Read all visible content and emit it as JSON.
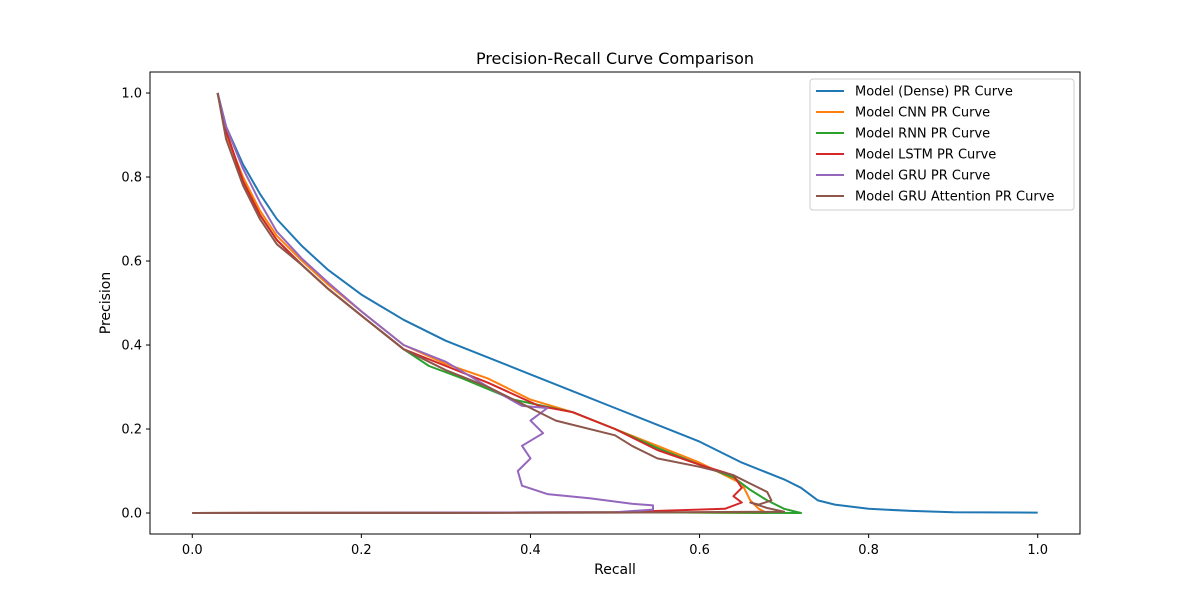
{
  "chart_data": {
    "type": "line",
    "title": "Precision-Recall Curve Comparison",
    "xlabel": "Recall",
    "ylabel": "Precision",
    "xlim": [
      -0.05,
      1.05
    ],
    "ylim": [
      -0.05,
      1.05
    ],
    "xticks": [
      "0.0",
      "0.2",
      "0.4",
      "0.6",
      "0.8",
      "1.0"
    ],
    "yticks": [
      "0.0",
      "0.2",
      "0.4",
      "0.6",
      "0.8",
      "1.0"
    ],
    "grid": false,
    "legend_position": "top-right",
    "series": [
      {
        "name": "Model (Dense) PR Curve",
        "color": "#1f77b4",
        "points": [
          [
            0.03,
            1.0
          ],
          [
            0.04,
            0.92
          ],
          [
            0.06,
            0.83
          ],
          [
            0.08,
            0.76
          ],
          [
            0.1,
            0.7
          ],
          [
            0.13,
            0.635
          ],
          [
            0.16,
            0.58
          ],
          [
            0.2,
            0.52
          ],
          [
            0.25,
            0.46
          ],
          [
            0.3,
            0.41
          ],
          [
            0.35,
            0.37
          ],
          [
            0.4,
            0.33
          ],
          [
            0.45,
            0.29
          ],
          [
            0.5,
            0.25
          ],
          [
            0.55,
            0.21
          ],
          [
            0.6,
            0.17
          ],
          [
            0.65,
            0.12
          ],
          [
            0.7,
            0.08
          ],
          [
            0.72,
            0.06
          ],
          [
            0.74,
            0.03
          ],
          [
            0.76,
            0.02
          ],
          [
            0.8,
            0.01
          ],
          [
            0.85,
            0.005
          ],
          [
            0.9,
            0.002
          ],
          [
            1.0,
            0.001
          ]
        ]
      },
      {
        "name": "Model CNN PR Curve",
        "color": "#ff7f0e",
        "points": [
          [
            0.03,
            1.0
          ],
          [
            0.04,
            0.9
          ],
          [
            0.06,
            0.8
          ],
          [
            0.08,
            0.72
          ],
          [
            0.1,
            0.66
          ],
          [
            0.13,
            0.6
          ],
          [
            0.16,
            0.545
          ],
          [
            0.2,
            0.48
          ],
          [
            0.25,
            0.4
          ],
          [
            0.3,
            0.355
          ],
          [
            0.35,
            0.32
          ],
          [
            0.4,
            0.27
          ],
          [
            0.45,
            0.24
          ],
          [
            0.5,
            0.2
          ],
          [
            0.55,
            0.16
          ],
          [
            0.6,
            0.12
          ],
          [
            0.63,
            0.09
          ],
          [
            0.65,
            0.07
          ],
          [
            0.66,
            0.03
          ],
          [
            0.67,
            0.01
          ],
          [
            0.68,
            0.0
          ],
          [
            0.5,
            0.002
          ],
          [
            0.3,
            0.001
          ],
          [
            0.0,
            0.0
          ]
        ]
      },
      {
        "name": "Model RNN PR Curve",
        "color": "#2ca02c",
        "points": [
          [
            0.03,
            1.0
          ],
          [
            0.04,
            0.91
          ],
          [
            0.06,
            0.79
          ],
          [
            0.08,
            0.71
          ],
          [
            0.1,
            0.65
          ],
          [
            0.13,
            0.59
          ],
          [
            0.16,
            0.535
          ],
          [
            0.2,
            0.47
          ],
          [
            0.25,
            0.39
          ],
          [
            0.28,
            0.35
          ],
          [
            0.32,
            0.32
          ],
          [
            0.38,
            0.27
          ],
          [
            0.45,
            0.24
          ],
          [
            0.5,
            0.2
          ],
          [
            0.55,
            0.155
          ],
          [
            0.6,
            0.115
          ],
          [
            0.64,
            0.085
          ],
          [
            0.66,
            0.055
          ],
          [
            0.68,
            0.03
          ],
          [
            0.7,
            0.01
          ],
          [
            0.72,
            0.0
          ],
          [
            0.5,
            0.002
          ],
          [
            0.3,
            0.001
          ],
          [
            0.0,
            0.0
          ]
        ]
      },
      {
        "name": "Model LSTM PR Curve",
        "color": "#d62728",
        "points": [
          [
            0.03,
            1.0
          ],
          [
            0.04,
            0.91
          ],
          [
            0.06,
            0.79
          ],
          [
            0.08,
            0.71
          ],
          [
            0.1,
            0.65
          ],
          [
            0.13,
            0.59
          ],
          [
            0.16,
            0.535
          ],
          [
            0.2,
            0.47
          ],
          [
            0.25,
            0.39
          ],
          [
            0.3,
            0.35
          ],
          [
            0.35,
            0.31
          ],
          [
            0.41,
            0.255
          ],
          [
            0.45,
            0.24
          ],
          [
            0.5,
            0.2
          ],
          [
            0.55,
            0.15
          ],
          [
            0.6,
            0.115
          ],
          [
            0.64,
            0.09
          ],
          [
            0.65,
            0.06
          ],
          [
            0.64,
            0.04
          ],
          [
            0.65,
            0.025
          ],
          [
            0.63,
            0.01
          ],
          [
            0.5,
            0.002
          ],
          [
            0.3,
            0.001
          ],
          [
            0.0,
            0.0
          ]
        ]
      },
      {
        "name": "Model GRU PR Curve",
        "color": "#9467bd",
        "points": [
          [
            0.03,
            1.0
          ],
          [
            0.04,
            0.92
          ],
          [
            0.06,
            0.82
          ],
          [
            0.08,
            0.74
          ],
          [
            0.1,
            0.67
          ],
          [
            0.13,
            0.605
          ],
          [
            0.16,
            0.55
          ],
          [
            0.2,
            0.48
          ],
          [
            0.25,
            0.4
          ],
          [
            0.3,
            0.36
          ],
          [
            0.35,
            0.3
          ],
          [
            0.39,
            0.255
          ],
          [
            0.42,
            0.25
          ],
          [
            0.4,
            0.22
          ],
          [
            0.415,
            0.19
          ],
          [
            0.39,
            0.16
          ],
          [
            0.4,
            0.13
          ],
          [
            0.385,
            0.1
          ],
          [
            0.39,
            0.065
          ],
          [
            0.42,
            0.045
          ],
          [
            0.47,
            0.035
          ],
          [
            0.52,
            0.022
          ],
          [
            0.545,
            0.018
          ],
          [
            0.545,
            0.008
          ],
          [
            0.5,
            0.002
          ],
          [
            0.3,
            0.001
          ],
          [
            0.0,
            0.0
          ]
        ]
      },
      {
        "name": "Model GRU Attention PR Curve",
        "color": "#8c564b",
        "points": [
          [
            0.03,
            1.0
          ],
          [
            0.04,
            0.89
          ],
          [
            0.06,
            0.78
          ],
          [
            0.08,
            0.7
          ],
          [
            0.1,
            0.64
          ],
          [
            0.13,
            0.59
          ],
          [
            0.16,
            0.535
          ],
          [
            0.2,
            0.47
          ],
          [
            0.25,
            0.39
          ],
          [
            0.3,
            0.34
          ],
          [
            0.35,
            0.3
          ],
          [
            0.4,
            0.25
          ],
          [
            0.43,
            0.22
          ],
          [
            0.5,
            0.185
          ],
          [
            0.52,
            0.16
          ],
          [
            0.55,
            0.13
          ],
          [
            0.6,
            0.11
          ],
          [
            0.64,
            0.09
          ],
          [
            0.66,
            0.07
          ],
          [
            0.68,
            0.05
          ],
          [
            0.685,
            0.03
          ],
          [
            0.67,
            0.02
          ],
          [
            0.66,
            0.025
          ],
          [
            0.68,
            0.012
          ],
          [
            0.7,
            0.003
          ],
          [
            0.5,
            0.001
          ],
          [
            0.3,
            0.0
          ],
          [
            0.0,
            0.0
          ]
        ]
      }
    ]
  }
}
